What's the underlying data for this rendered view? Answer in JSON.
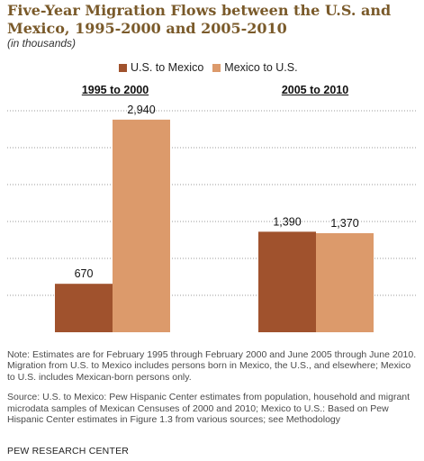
{
  "title": "Five-Year Migration Flows between the U.S. and Mexico, 1995-2000 and 2005-2010",
  "subtitle": "(in thousands)",
  "colors": {
    "us_to_mexico": "#a0522d",
    "mexico_to_us": "#dc9a6b",
    "title": "#7a5a2a"
  },
  "chart_data": {
    "type": "bar",
    "categories": [
      "1995 to 2000",
      "2005 to 2010"
    ],
    "series": [
      {
        "name": "U.S. to Mexico",
        "values": [
          670,
          1390
        ],
        "labels": [
          "670",
          "1,390"
        ]
      },
      {
        "name": "Mexico to U.S.",
        "values": [
          2940,
          1370
        ],
        "labels": [
          "2,940",
          "1,370"
        ]
      }
    ],
    "ylim": [
      0,
      3200
    ],
    "grid": true,
    "legend": "top"
  },
  "notes": {
    "note": "Note: Estimates are for February 1995 through February 2000 and June 2005 through June 2010.  Migration from U.S. to Mexico includes persons born in Mexico, the U.S., and elsewhere; Mexico to U.S. includes Mexican-born persons only.",
    "source": "Source: U.S. to Mexico: Pew Hispanic Center estimates from population, household and migrant microdata samples of Mexican Censuses of 2000 and 2010; Mexico to U.S.: Based on Pew Hispanic Center estimates in Figure 1.3 from various sources; see Methodology"
  },
  "footer": "PEW RESEARCH CENTER"
}
